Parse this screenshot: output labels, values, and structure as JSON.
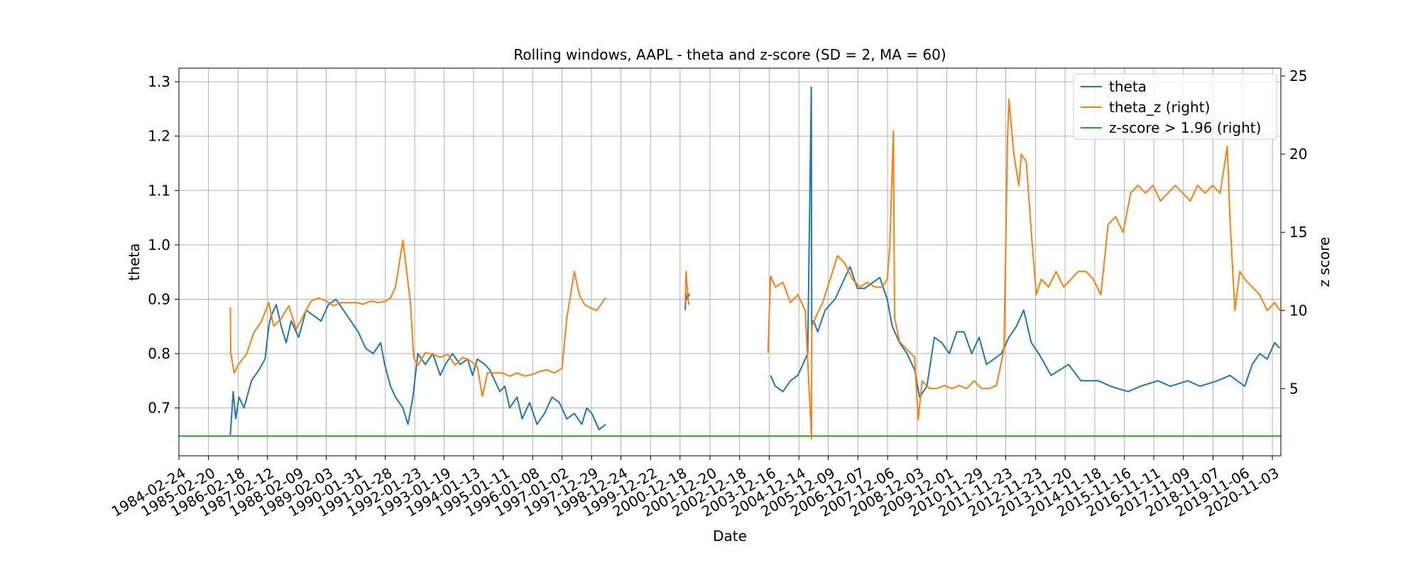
{
  "chart_data": {
    "type": "line",
    "title": "Rolling windows, AAPL - theta and z-score (SD = 2, MA = 60)",
    "xlabel": "Date",
    "ylabel": "theta",
    "ylabel_right": "z score",
    "xlim": [
      "1984-02-24",
      "2021-02-15"
    ],
    "ylim": [
      0.612,
      1.325
    ],
    "ylim_right": [
      0.7,
      25.5
    ],
    "x_ticks": [
      "1984-02-24",
      "1985-02-20",
      "1986-02-18",
      "1987-02-12",
      "1988-02-09",
      "1989-02-03",
      "1990-01-31",
      "1991-01-28",
      "1992-01-23",
      "1993-01-19",
      "1994-01-13",
      "1995-01-11",
      "1996-01-08",
      "1997-01-02",
      "1997-12-29",
      "1998-12-24",
      "1999-12-22",
      "2000-12-18",
      "2001-12-20",
      "2002-12-18",
      "2003-12-16",
      "2004-12-14",
      "2005-12-09",
      "2006-12-07",
      "2007-12-06",
      "2008-12-03",
      "2009-12-01",
      "2010-11-29",
      "2011-11-23",
      "2012-11-23",
      "2013-11-20",
      "2014-11-18",
      "2015-11-16",
      "2016-11-11",
      "2017-11-09",
      "2018-11-07",
      "2019-11-06",
      "2020-11-03"
    ],
    "y_ticks": [
      "0.7",
      "0.8",
      "0.9",
      "1.0",
      "1.1",
      "1.2",
      "1.3"
    ],
    "y_ticks_right": [
      "5",
      "10",
      "15",
      "20",
      "25"
    ],
    "grid": true,
    "legend_position": "top-right",
    "series": [
      {
        "name": "theta",
        "axis": "left",
        "color": "#1f77b4",
        "segments": [
          {
            "x": [
              "1985-11-15",
              "1985-12-20",
              "1986-01-20",
              "1986-03-01",
              "1986-05-01",
              "1986-08-01",
              "1986-11-01",
              "1987-01-15",
              "1987-03-01",
              "1987-04-01",
              "1987-06-01",
              "1987-08-01",
              "1987-10-01",
              "1987-12-01",
              "1988-03-01",
              "1988-06-01",
              "1988-09-01",
              "1988-12-01",
              "1989-03-01",
              "1989-06-01",
              "1989-09-01",
              "1989-12-01",
              "1990-03-01",
              "1990-06-01",
              "1990-09-01",
              "1990-12-01",
              "1991-01-20",
              "1991-04-01",
              "1991-06-01",
              "1991-09-01",
              "1991-11-01",
              "1992-01-01",
              "1992-03-01",
              "1992-06-01",
              "1992-09-01",
              "1992-12-01",
              "1993-02-01",
              "1993-05-01",
              "1993-08-01",
              "1993-11-01",
              "1994-01-01",
              "1994-03-01",
              "1994-06-01",
              "1994-08-01",
              "1994-10-01",
              "1994-12-01",
              "1995-02-01",
              "1995-04-01",
              "1995-07-01",
              "1995-09-01",
              "1995-12-01",
              "1996-03-01",
              "1996-06-01",
              "1996-09-01",
              "1996-12-01",
              "1997-03-01",
              "1997-06-01",
              "1997-09-01",
              "1997-11-01",
              "1998-01-01",
              "1998-04-01",
              "1998-06-20"
            ],
            "y": [
              0.65,
              0.73,
              0.68,
              0.72,
              0.7,
              0.75,
              0.77,
              0.79,
              0.85,
              0.87,
              0.89,
              0.85,
              0.82,
              0.86,
              0.83,
              0.88,
              0.87,
              0.86,
              0.89,
              0.9,
              0.88,
              0.86,
              0.84,
              0.81,
              0.8,
              0.82,
              0.78,
              0.74,
              0.72,
              0.7,
              0.67,
              0.72,
              0.8,
              0.78,
              0.8,
              0.76,
              0.78,
              0.8,
              0.78,
              0.79,
              0.76,
              0.79,
              0.78,
              0.77,
              0.75,
              0.73,
              0.74,
              0.7,
              0.72,
              0.68,
              0.71,
              0.67,
              0.69,
              0.72,
              0.71,
              0.68,
              0.69,
              0.67,
              0.7,
              0.69,
              0.66,
              0.67
            ]
          },
          {
            "x": [
              "2001-02-20",
              "2001-03-01",
              "2001-03-15",
              "2001-04-15"
            ],
            "y": [
              0.88,
              0.91,
              0.9,
              0.91
            ]
          },
          {
            "x": [
              "2004-01-01",
              "2004-03-01",
              "2004-06-01",
              "2004-09-01",
              "2004-12-01",
              "2005-02-01",
              "2005-04-01",
              "2005-05-15",
              "2005-05-20",
              "2005-05-25",
              "2005-06-15",
              "2005-08-01",
              "2005-11-01",
              "2006-03-01",
              "2006-06-01",
              "2006-09-01",
              "2006-12-01",
              "2007-03-01",
              "2007-06-01",
              "2007-09-01",
              "2007-12-01",
              "2008-02-01",
              "2008-05-01",
              "2008-08-01",
              "2008-11-01",
              "2009-01-01",
              "2009-04-01",
              "2009-07-01",
              "2009-10-01",
              "2010-01-01",
              "2010-04-01",
              "2010-07-01",
              "2010-10-01",
              "2011-01-01",
              "2011-04-01",
              "2011-07-01",
              "2011-10-01",
              "2012-01-01",
              "2012-04-01",
              "2012-07-01",
              "2012-10-01",
              "2013-01-01",
              "2013-06-01",
              "2014-01-01",
              "2014-06-01",
              "2015-01-01",
              "2015-06-01",
              "2016-01-01",
              "2016-06-01",
              "2017-01-01",
              "2017-06-01",
              "2018-01-01",
              "2018-06-01",
              "2019-01-01",
              "2019-06-01",
              "2019-12-01",
              "2020-03-01",
              "2020-06-01",
              "2020-09-01",
              "2020-12-01",
              "2021-02-01"
            ],
            "y": [
              0.76,
              0.74,
              0.73,
              0.75,
              0.76,
              0.78,
              0.8,
              1.29,
              0.84,
              0.86,
              0.86,
              0.84,
              0.88,
              0.9,
              0.93,
              0.96,
              0.92,
              0.92,
              0.93,
              0.94,
              0.9,
              0.85,
              0.82,
              0.8,
              0.77,
              0.72,
              0.74,
              0.83,
              0.82,
              0.8,
              0.84,
              0.84,
              0.8,
              0.83,
              0.78,
              0.79,
              0.8,
              0.83,
              0.85,
              0.88,
              0.82,
              0.8,
              0.76,
              0.78,
              0.75,
              0.75,
              0.74,
              0.73,
              0.74,
              0.75,
              0.74,
              0.75,
              0.74,
              0.75,
              0.76,
              0.74,
              0.78,
              0.8,
              0.79,
              0.82,
              0.81
            ]
          }
        ]
      },
      {
        "name": "theta_z (right)",
        "axis": "right",
        "color": "#ff7f0e",
        "segments": [
          {
            "x": [
              "1985-11-15",
              "1985-11-20",
              "1986-01-01",
              "1986-03-01",
              "1986-06-01",
              "1986-09-01",
              "1986-12-01",
              "1987-03-01",
              "1987-05-01",
              "1987-08-01",
              "1987-11-01",
              "1988-02-01",
              "1988-05-01",
              "1988-08-01",
              "1988-11-01",
              "1989-02-01",
              "1989-05-01",
              "1989-08-01",
              "1989-11-01",
              "1990-02-01",
              "1990-05-01",
              "1990-08-01",
              "1990-11-01",
              "1991-02-01",
              "1991-04-01",
              "1991-06-01",
              "1991-09-01",
              "1991-12-01",
              "1992-01-10",
              "1992-03-01",
              "1992-06-01",
              "1992-09-01",
              "1992-12-01",
              "1993-03-01",
              "1993-06-01",
              "1993-09-01",
              "1993-12-01",
              "1994-03-01",
              "1994-05-01",
              "1994-07-01",
              "1994-10-01",
              "1995-01-01",
              "1995-04-01",
              "1995-07-01",
              "1995-10-01",
              "1996-01-01",
              "1996-04-01",
              "1996-07-01",
              "1996-10-01",
              "1997-01-01",
              "1997-03-01",
              "1997-06-01",
              "1997-08-01",
              "1997-10-01",
              "1997-12-01",
              "1998-03-01",
              "1998-06-20"
            ],
            "y": [
              10.2,
              7.3,
              6.0,
              6.6,
              7.2,
              8.6,
              9.3,
              10.5,
              9.0,
              9.5,
              10.3,
              8.8,
              9.7,
              10.6,
              10.8,
              10.6,
              10.3,
              10.5,
              10.5,
              10.5,
              10.4,
              10.6,
              10.5,
              10.6,
              10.8,
              11.5,
              14.5,
              10.5,
              7.0,
              6.5,
              7.3,
              7.2,
              7.0,
              7.2,
              6.5,
              7.0,
              6.8,
              6.4,
              4.5,
              6.0,
              6.0,
              6.0,
              5.8,
              6.0,
              5.8,
              5.9,
              6.1,
              6.2,
              6.0,
              6.3,
              9.5,
              12.5,
              11.0,
              10.4,
              10.2,
              10.0,
              10.8
            ]
          },
          {
            "x": [
              "2001-02-20",
              "2001-03-01",
              "2001-04-01",
              "2001-04-15"
            ],
            "y": [
              10.5,
              12.5,
              10.4,
              10.5
            ]
          },
          {
            "x": [
              "2003-12-01",
              "2004-01-01",
              "2004-03-01",
              "2004-06-01",
              "2004-09-01",
              "2004-12-01",
              "2005-03-01",
              "2005-05-18",
              "2005-05-20",
              "2005-05-25",
              "2005-07-01",
              "2005-10-01",
              "2006-01-01",
              "2006-04-01",
              "2006-07-01",
              "2006-10-01",
              "2007-01-01",
              "2007-04-01",
              "2007-07-01",
              "2007-10-01",
              "2007-12-01",
              "2008-01-01",
              "2008-02-15",
              "2008-03-01",
              "2008-05-01",
              "2008-08-01",
              "2008-11-01",
              "2008-12-15",
              "2009-02-01",
              "2009-05-01",
              "2009-08-01",
              "2009-11-01",
              "2010-02-01",
              "2010-05-01",
              "2010-08-01",
              "2010-11-01",
              "2011-02-01",
              "2011-05-01",
              "2011-08-01",
              "2011-11-01",
              "2011-12-15",
              "2012-01-01",
              "2012-03-01",
              "2012-05-01",
              "2012-06-01",
              "2012-08-01",
              "2012-10-01",
              "2012-12-01",
              "2013-02-01",
              "2013-05-01",
              "2013-08-01",
              "2013-11-01",
              "2014-02-01",
              "2014-05-01",
              "2014-08-01",
              "2014-11-01",
              "2015-02-01",
              "2015-05-01",
              "2015-08-01",
              "2015-11-01",
              "2016-02-01",
              "2016-05-01",
              "2016-08-01",
              "2016-11-01",
              "2017-02-01",
              "2017-05-01",
              "2017-08-01",
              "2017-11-01",
              "2018-02-01",
              "2018-05-01",
              "2018-08-01",
              "2018-11-01",
              "2019-02-01",
              "2019-05-01",
              "2019-06-01",
              "2019-08-01",
              "2019-10-01",
              "2019-12-01",
              "2020-03-01",
              "2020-06-01",
              "2020-09-01",
              "2020-12-01",
              "2021-02-01"
            ],
            "y": [
              7.3,
              12.2,
              11.5,
              11.8,
              10.5,
              11.0,
              10.0,
              1.8,
              8.5,
              9.0,
              9.5,
              10.5,
              12.0,
              13.5,
              13.0,
              12.0,
              11.5,
              11.8,
              11.5,
              11.5,
              12.0,
              14.0,
              21.5,
              9.5,
              8.0,
              7.5,
              7.0,
              3.0,
              5.5,
              5.0,
              5.0,
              5.2,
              5.0,
              5.2,
              5.0,
              5.5,
              5.0,
              5.0,
              5.2,
              7.5,
              21.0,
              23.5,
              20.0,
              18.0,
              20.0,
              19.5,
              15.0,
              11.0,
              12.0,
              11.5,
              12.5,
              11.5,
              12.0,
              12.5,
              12.5,
              12.0,
              11.0,
              15.5,
              16.0,
              15.0,
              17.5,
              18.0,
              17.5,
              18.0,
              17.0,
              17.5,
              18.0,
              17.5,
              17.0,
              18.0,
              17.5,
              18.0,
              17.5,
              20.5,
              16.0,
              10.0,
              12.5,
              12.0,
              11.5,
              11.0,
              10.0,
              10.5,
              10.0
            ]
          }
        ]
      },
      {
        "name": "z-score > 1.96 (right)",
        "axis": "right",
        "color": "#2ca02c",
        "segments": [
          {
            "x": [
              "1984-02-24",
              "2021-02-15"
            ],
            "y": [
              1.96,
              1.96
            ]
          }
        ]
      }
    ]
  }
}
